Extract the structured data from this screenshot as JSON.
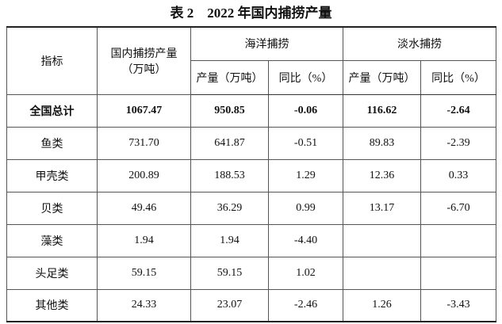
{
  "title": "表 2　2022 年国内捕捞产量",
  "header": {
    "indicator": "指标",
    "domestic": [
      "国内捕捞产量",
      "（万吨）"
    ],
    "marine": "海洋捕捞",
    "freshwater": "淡水捕捞",
    "output": "产量（万吨）",
    "yoy": "同比（%）"
  },
  "table": {
    "rows": [
      {
        "name": "全国总计",
        "total": "1067.47",
        "marine_output": "950.85",
        "marine_yoy": "-0.06",
        "fresh_output": "116.62",
        "fresh_yoy": "-2.64"
      },
      {
        "name": "鱼类",
        "total": "731.70",
        "marine_output": "641.87",
        "marine_yoy": "-0.51",
        "fresh_output": "89.83",
        "fresh_yoy": "-2.39"
      },
      {
        "name": "甲壳类",
        "total": "200.89",
        "marine_output": "188.53",
        "marine_yoy": "1.29",
        "fresh_output": "12.36",
        "fresh_yoy": "0.33"
      },
      {
        "name": "贝类",
        "total": "49.46",
        "marine_output": "36.29",
        "marine_yoy": "0.99",
        "fresh_output": "13.17",
        "fresh_yoy": "-6.70"
      },
      {
        "name": "藻类",
        "total": "1.94",
        "marine_output": "1.94",
        "marine_yoy": "-4.40"
      },
      {
        "name": "头足类",
        "total": "59.15",
        "marine_output": "59.15",
        "marine_yoy": "1.02"
      },
      {
        "name": "其他类",
        "total": "24.33",
        "marine_output": "23.07",
        "marine_yoy": "-2.46",
        "fresh_output": "1.26",
        "fresh_yoy": "-3.43"
      }
    ]
  }
}
